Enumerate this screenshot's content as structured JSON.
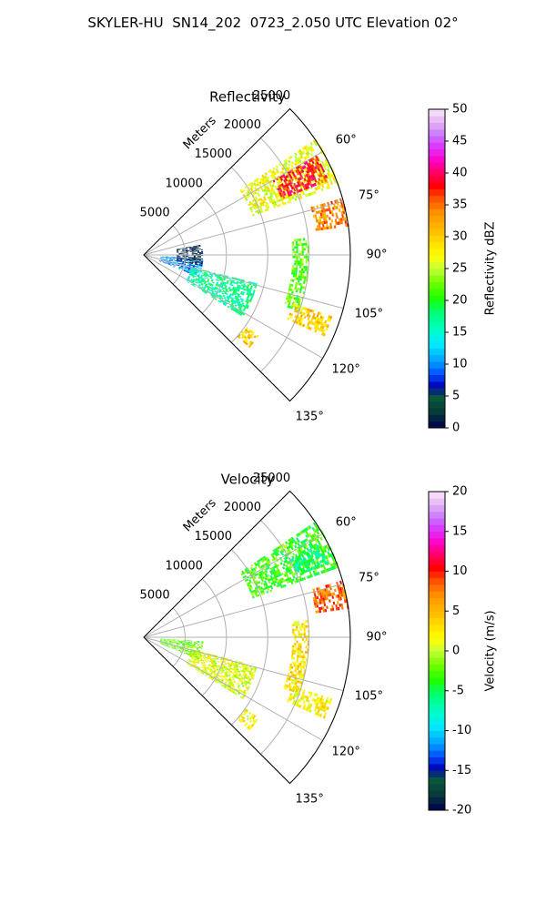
{
  "title": "SKYLER-HU  SN14_202  0723_2.050 UTC Elevation 02°",
  "chart_data": [
    {
      "type": "polar-sector",
      "title": "Reflectivity",
      "range_label": "Meters",
      "range_ticks": [
        5000,
        10000,
        15000,
        20000,
        25000
      ],
      "range_max": 25000,
      "angle_range_deg": [
        45,
        135
      ],
      "angle_ticks": [
        "60°",
        "75°",
        "90°",
        "105°",
        "120°",
        "135°"
      ],
      "colorbar": {
        "label": "Reflectivity dBZ",
        "range": [
          0,
          50
        ],
        "ticks": [
          0,
          5,
          10,
          15,
          20,
          25,
          30,
          35,
          40,
          45,
          50
        ]
      },
      "regions": [
        {
          "theta": [
            56,
            70
          ],
          "r": [
            14000,
            25000
          ],
          "value": 27
        },
        {
          "theta": [
            60,
            68
          ],
          "r": [
            18000,
            24000
          ],
          "value": 38
        },
        {
          "theta": [
            74,
            82
          ],
          "r": [
            21000,
            25000
          ],
          "value": 34
        },
        {
          "theta": [
            84,
            110
          ],
          "r": [
            18000,
            20000
          ],
          "value": 22
        },
        {
          "theta": [
            108,
            114
          ],
          "r": [
            19000,
            24000
          ],
          "value": 30
        },
        {
          "theta": [
            94,
            112
          ],
          "r": [
            2000,
            7000
          ],
          "value": 10
        },
        {
          "theta": [
            104,
            122
          ],
          "r": [
            6000,
            14000
          ],
          "value": 17
        },
        {
          "theta": [
            125,
            131
          ],
          "r": [
            15000,
            17000
          ],
          "value": 30
        },
        {
          "theta": [
            80,
            100
          ],
          "r": [
            4000,
            7000
          ],
          "value": 3
        }
      ]
    },
    {
      "type": "polar-sector",
      "title": "Velocity",
      "range_label": "Meters",
      "range_ticks": [
        5000,
        10000,
        15000,
        20000,
        25000
      ],
      "range_max": 25000,
      "angle_range_deg": [
        45,
        135
      ],
      "angle_ticks": [
        "60°",
        "75°",
        "90°",
        "105°",
        "120°",
        "135°"
      ],
      "colorbar": {
        "label": "Velocity (m/s)",
        "range": [
          -20,
          20
        ],
        "ticks": [
          -20,
          -15,
          -10,
          -5,
          0,
          5,
          10,
          15,
          20
        ]
      },
      "regions": [
        {
          "theta": [
            56,
            70
          ],
          "r": [
            14000,
            25000
          ],
          "value": -3
        },
        {
          "theta": [
            62,
            68
          ],
          "r": [
            20000,
            24000
          ],
          "value": -6
        },
        {
          "theta": [
            74,
            82
          ],
          "r": [
            21000,
            25000
          ],
          "value": 8
        },
        {
          "theta": [
            84,
            110
          ],
          "r": [
            18000,
            20000
          ],
          "value": 3
        },
        {
          "theta": [
            108,
            114
          ],
          "r": [
            19000,
            24000
          ],
          "value": 2
        },
        {
          "theta": [
            94,
            112
          ],
          "r": [
            2000,
            7000
          ],
          "value": -2
        },
        {
          "theta": [
            104,
            122
          ],
          "r": [
            6000,
            14000
          ],
          "value": 1
        },
        {
          "theta": [
            125,
            131
          ],
          "r": [
            15000,
            17000
          ],
          "value": 2
        }
      ]
    }
  ]
}
